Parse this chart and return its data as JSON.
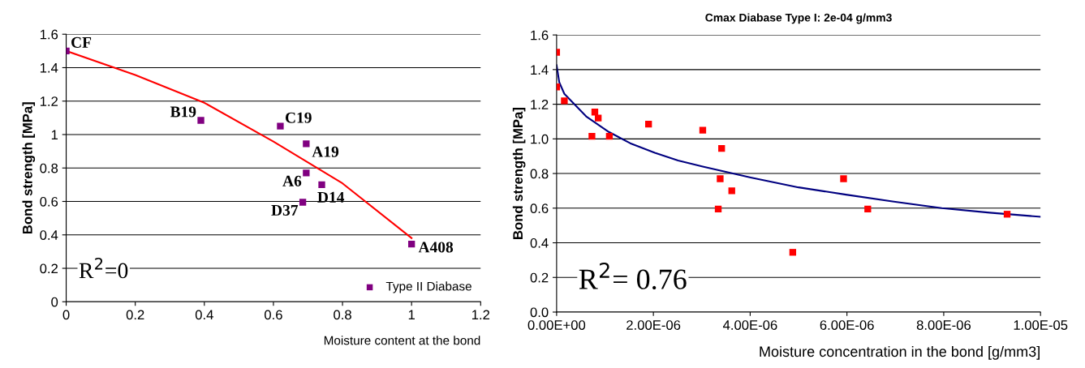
{
  "chart_data": [
    {
      "type": "scatter",
      "xlabel": "Moisture content at the bond",
      "ylabel": "Bond strength [MPa]",
      "xlim": [
        0,
        1.2
      ],
      "ylim": [
        0,
        1.6
      ],
      "xticks": [
        0,
        0.2,
        0.4,
        0.6,
        0.8,
        1,
        1.2
      ],
      "yticks": [
        0,
        0.2,
        0.4,
        0.6,
        0.8,
        1,
        1.2,
        1.4,
        1.6
      ],
      "grid": "y",
      "legend": "bottom right",
      "series": [
        {
          "name": "Type II Diabase",
          "marker": "square",
          "color": "#800080",
          "x": [
            0,
            0.39,
            0.62,
            0.695,
            0.695,
            0.74,
            0.685,
            1.0
          ],
          "values": [
            1.5,
            1.085,
            1.05,
            0.945,
            0.77,
            0.7,
            0.595,
            0.345
          ]
        },
        {
          "type": "line",
          "color": "#ff0000",
          "x": [
            0,
            0.2,
            0.4,
            0.6,
            0.8,
            1.0
          ],
          "values": [
            1.5,
            1.356,
            1.19,
            0.958,
            0.708,
            0.381
          ]
        }
      ],
      "annotations": [
        {
          "text": "CF",
          "x": 0,
          "y": 1.5
        },
        {
          "text": "B19",
          "x": 0.39,
          "y": 1.085
        },
        {
          "text": "C19",
          "x": 0.62,
          "y": 1.05
        },
        {
          "text": "A19",
          "x": 0.695,
          "y": 0.945
        },
        {
          "text": "A6",
          "x": 0.695,
          "y": 0.77
        },
        {
          "text": "D14",
          "x": 0.74,
          "y": 0.7
        },
        {
          "text": "D37",
          "x": 0.685,
          "y": 0.595
        },
        {
          "text": "A408",
          "x": 1.0,
          "y": 0.345
        },
        "R$^{2}$=0"
      ]
    },
    {
      "type": "scatter",
      "title": "Cmax Diabase Type I: 2e-04 g/mm3",
      "xlabel": "Moisture concentration in the bond [g/mm3]",
      "ylabel": "Bond strength [MPa]",
      "xlim": [
        0,
        1e-05
      ],
      "ylim": [
        0,
        1.6
      ],
      "xticks": [
        {
          "value": 0,
          "label": "0.00E+00"
        },
        {
          "value": 2e-06,
          "label": "2.00E-06"
        },
        {
          "value": 4e-06,
          "label": "4.00E-06"
        },
        {
          "value": 6e-06,
          "label": "6.00E-06"
        },
        {
          "value": 8e-06,
          "label": "8.00E-06"
        },
        {
          "value": 1e-05,
          "label": "1.00E-05"
        }
      ],
      "yticks": [
        {
          "value": 0,
          "label": "0.0"
        },
        {
          "value": 0.2,
          "label": "0.2"
        },
        {
          "value": 0.4,
          "label": "0.4"
        },
        {
          "value": 0.6,
          "label": "0.6"
        },
        {
          "value": 0.8,
          "label": "0.8"
        },
        {
          "value": 1,
          "label": "1.0"
        },
        {
          "value": 1.2,
          "label": "1.2"
        },
        {
          "value": 1.4,
          "label": "1.4"
        },
        {
          "value": 1.6,
          "label": "1.6"
        }
      ],
      "grid": "y",
      "series": [
        {
          "marker": "square",
          "color": "#ff0000",
          "x": [
            0,
            0,
            1.6e-07,
            7.3e-07,
            7.9e-07,
            8.6e-07,
            1.09e-06,
            1.9e-06,
            3.02e-06,
            3.41e-06,
            3.38e-06,
            3.62e-06,
            3.34e-06,
            4.88e-06,
            5.93e-06,
            6.43e-06,
            9.31e-06
          ],
          "values": [
            1.5,
            1.3,
            1.22,
            1.015,
            1.155,
            1.12,
            1.015,
            1.085,
            1.05,
            0.945,
            0.77,
            0.7,
            0.595,
            0.345,
            0.77,
            0.595,
            0.565
          ]
        },
        {
          "type": "line",
          "color": "#000080",
          "x": [
            0,
            5.5e-08,
            1.6e-07,
            6.1e-07,
            1.08e-06,
            1.52e-06,
            2.03e-06,
            2.51e-06,
            3.02e-06,
            4.01e-06,
            5e-06,
            5.98e-06,
            6.97e-06,
            7.96e-06,
            8.95e-06,
            1e-05
          ],
          "values": [
            1.425,
            1.327,
            1.26,
            1.13,
            1.04,
            0.975,
            0.92,
            0.875,
            0.84,
            0.777,
            0.72,
            0.678,
            0.638,
            0.6,
            0.574,
            0.55
          ]
        }
      ],
      "annotations": [
        "R$^{2}$= 0.76"
      ]
    }
  ]
}
